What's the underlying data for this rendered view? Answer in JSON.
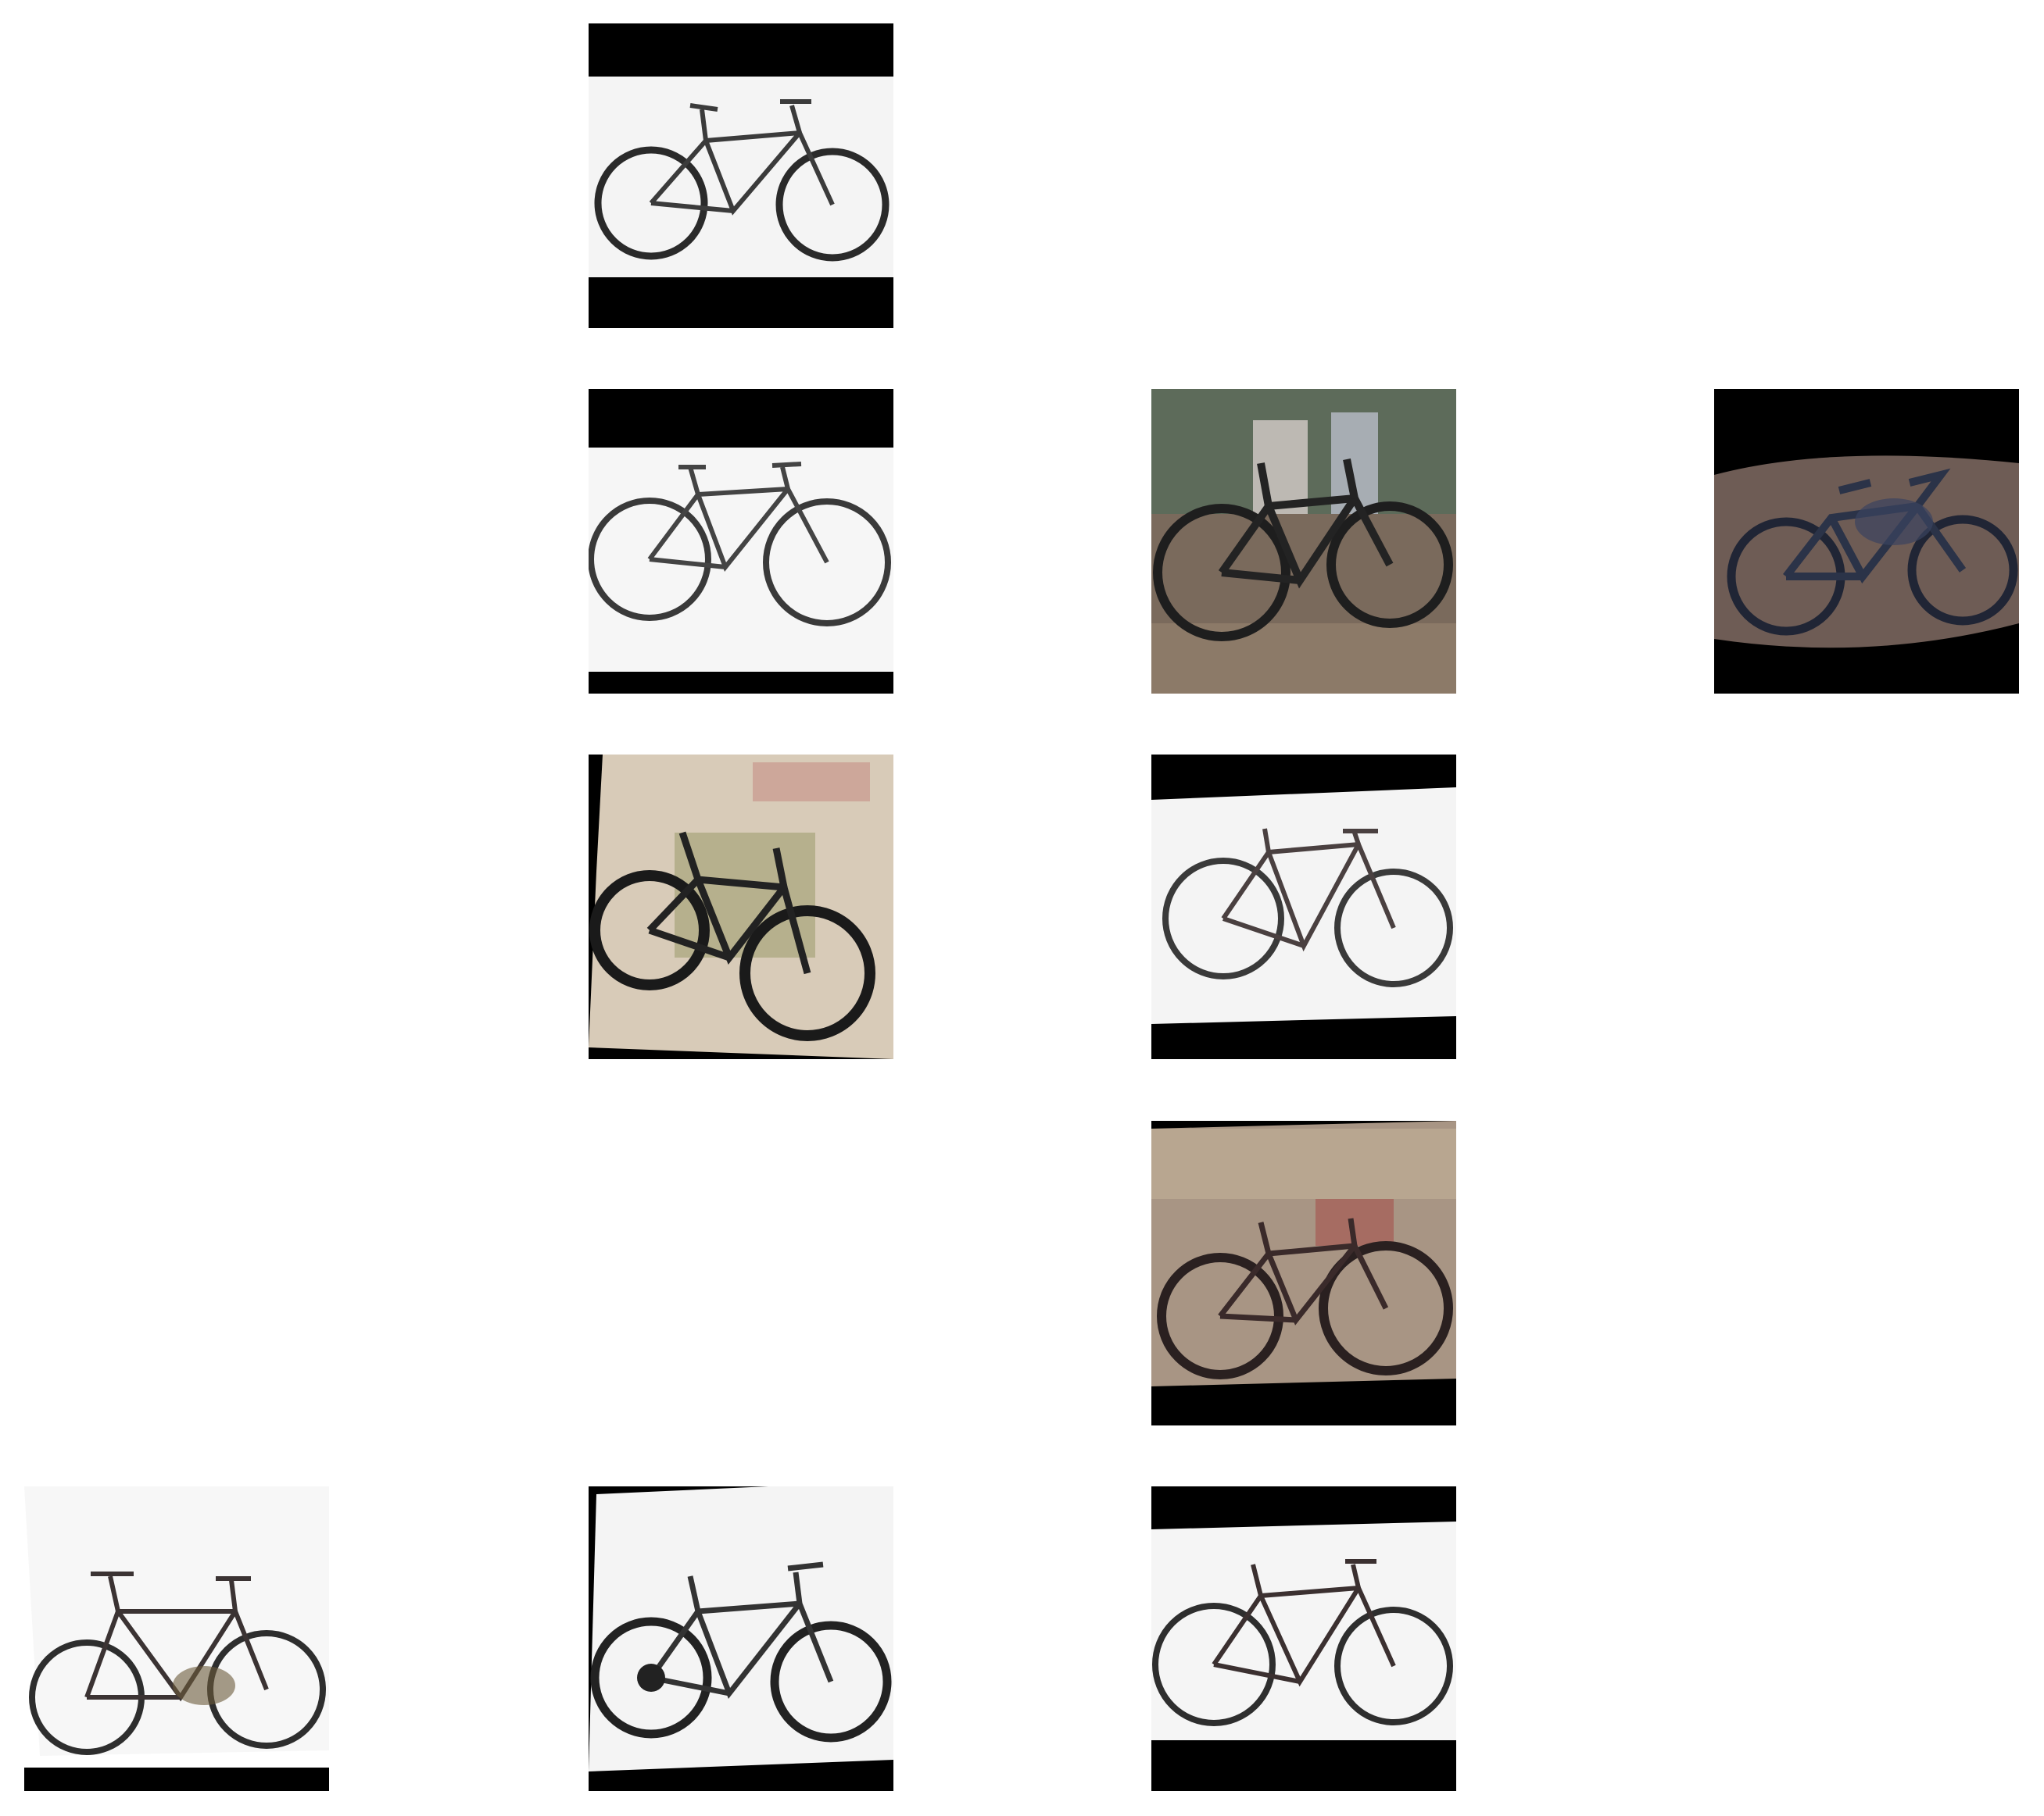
{
  "grid": {
    "rows": 5,
    "cols": 4,
    "cells": [
      {
        "row": 0,
        "col": 1,
        "subject": "bicycle",
        "scene": "white-background-with-black-letterbox",
        "frame_color": "#2a2a2a",
        "ground_color": "#f4f4f4"
      },
      {
        "row": 1,
        "col": 1,
        "subject": "bicycle",
        "scene": "white-background-with-black-letterbox",
        "frame_color": "#3a3a3a",
        "ground_color": "#f6f6f6"
      },
      {
        "row": 1,
        "col": 2,
        "subject": "bicycle",
        "scene": "outdoor-dirt-ground",
        "frame_color": "#1e1e1e",
        "ground_color": "#7a6a5c"
      },
      {
        "row": 1,
        "col": 3,
        "subject": "bicycle",
        "scene": "outdoor-dark-ground",
        "frame_color": "#202535",
        "ground_color": "#6e5c55"
      },
      {
        "row": 2,
        "col": 1,
        "subject": "bicycle",
        "scene": "beige-background-skewed",
        "frame_color": "#1a1a1a",
        "ground_color": "#d8cbb8"
      },
      {
        "row": 2,
        "col": 2,
        "subject": "bicycle",
        "scene": "white-background-with-black-letterbox",
        "frame_color": "#3a3a3a",
        "ground_color": "#f4f4f4"
      },
      {
        "row": 3,
        "col": 2,
        "subject": "bicycle",
        "scene": "outdoor-tan-ground",
        "frame_color": "#2a2020",
        "ground_color": "#a89584"
      },
      {
        "row": 4,
        "col": 0,
        "subject": "bicycle",
        "scene": "white-background-with-black-letterbox",
        "frame_color": "#2e2e2e",
        "ground_color": "#f7f7f7"
      },
      {
        "row": 4,
        "col": 1,
        "subject": "bicycle",
        "scene": "white-background-with-black-letterbox",
        "frame_color": "#222222",
        "ground_color": "#f4f4f4"
      },
      {
        "row": 4,
        "col": 2,
        "subject": "bicycle",
        "scene": "white-background-with-black-letterbox",
        "frame_color": "#2e2e2e",
        "ground_color": "#f5f5f5"
      }
    ]
  }
}
